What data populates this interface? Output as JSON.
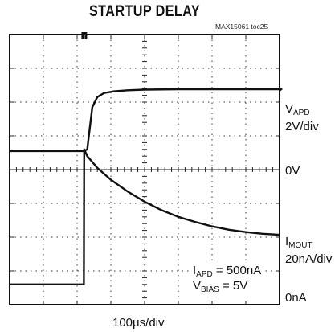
{
  "title": "STARTUP DELAY",
  "figure_tag": "MAX15061 toc25",
  "chart_data": {
    "type": "line",
    "title": "STARTUP DELAY",
    "grid": true,
    "x_divisions": 8,
    "y_divisions": 8,
    "xlabel": "100μs/div",
    "x_unit_per_div_us": 100,
    "series": [
      {
        "name": "VAPD",
        "scale": "2V/div",
        "zero_label": "0V",
        "x_div": [
          0,
          2.2,
          2.3,
          2.45,
          2.6,
          2.8,
          3.1,
          3.5,
          4.0,
          5.0,
          6.0,
          7.0,
          8.0
        ],
        "y_div": [
          0,
          0,
          0.05,
          1.3,
          1.6,
          1.72,
          1.77,
          1.8,
          1.82,
          1.83,
          1.83,
          1.83,
          1.83
        ]
      },
      {
        "name": "IMOUT",
        "scale": "20nA/div",
        "zero_label": "0nA",
        "x_div": [
          0,
          2.2,
          2.21,
          2.3,
          2.6,
          3.0,
          3.5,
          4.0,
          4.5,
          5.0,
          5.5,
          6.0,
          6.5,
          7.0,
          7.5,
          8.0
        ],
        "y_div": [
          0,
          0,
          4.0,
          3.8,
          3.45,
          3.1,
          2.75,
          2.45,
          2.2,
          2.0,
          1.85,
          1.72,
          1.62,
          1.55,
          1.5,
          1.47
        ]
      }
    ]
  },
  "labels": {
    "vapd_main": "V",
    "vapd_sub": "APD",
    "vapd_scale": "2V/div",
    "zero_v": "0V",
    "imout_main": "I",
    "imout_sub": "MOUT",
    "imout_scale": "20nA/div",
    "zero_a": "0nA",
    "xlabel": "100μs/div"
  },
  "annotation": {
    "iapd_main": "I",
    "iapd_sub": "APD",
    "iapd_value": " = 500nA",
    "vbias_main": "V",
    "vbias_sub": "BIAS",
    "vbias_value": " = 5V"
  },
  "trigger_marker": "T"
}
